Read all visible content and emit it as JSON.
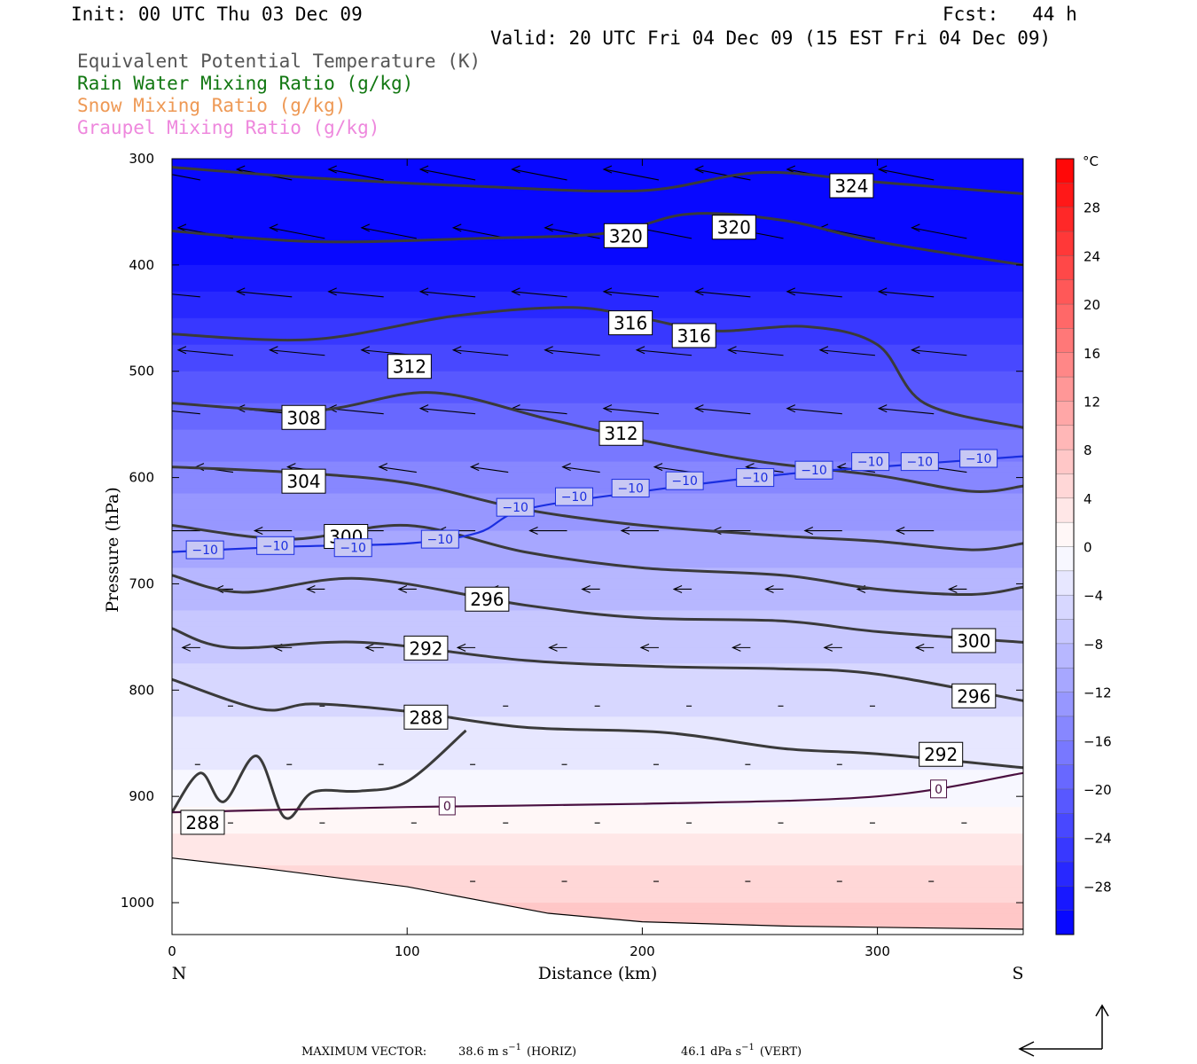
{
  "header": {
    "init": "Init: 00 UTC Thu 03 Dec 09",
    "fcst": "Fcst:   44 h",
    "valid": "Valid: 20 UTC Fri 04 Dec 09 (15 EST Fri 04 Dec 09)",
    "legend": [
      {
        "text": "Equivalent Potential Temperature (K)",
        "color": "#555555"
      },
      {
        "text": "Rain Water Mixing Ratio (g/kg)",
        "color": "#117711"
      },
      {
        "text": "Snow Mixing Ratio (g/kg)",
        "color": "#ee9955"
      },
      {
        "text": "Graupel Mixing Ratio (g/kg)",
        "color": "#ee88dd"
      }
    ]
  },
  "chart_data": {
    "type": "cross-section",
    "xlabel": "Distance (km)",
    "ylabel": "Pressure (hPa)",
    "xlim": [
      0,
      362
    ],
    "ylim": [
      1030,
      300
    ],
    "x_ticks": [
      0,
      100,
      200,
      300
    ],
    "y_ticks": [
      300,
      400,
      500,
      600,
      700,
      800,
      900,
      1000
    ],
    "x_end_labels": {
      "left": "N",
      "right": "S"
    },
    "colorbar": {
      "unit": "°C",
      "levels": [
        -32,
        -30,
        -28,
        -26,
        -24,
        -22,
        -20,
        -18,
        -16,
        -14,
        -12,
        -10,
        -8,
        -6,
        -4,
        -2,
        0,
        2,
        4,
        6,
        8,
        10,
        12,
        14,
        16,
        18,
        20,
        22,
        24,
        26,
        28,
        30,
        32
      ],
      "tick_labels": [
        "28",
        "24",
        "20",
        "16",
        "12",
        "8",
        "4",
        "0",
        "−4",
        "−8",
        "−12",
        "−16",
        "−20",
        "−24",
        "−28"
      ],
      "tick_values": [
        28,
        24,
        20,
        16,
        12,
        8,
        4,
        0,
        -4,
        -8,
        -12,
        -16,
        -20,
        -24,
        -28
      ]
    },
    "temperature_field_profile": [
      {
        "p": 300,
        "t": -32
      },
      {
        "p": 400,
        "t": -30
      },
      {
        "p": 500,
        "t": -22
      },
      {
        "p": 600,
        "t": -15
      },
      {
        "p": 700,
        "t": -9
      },
      {
        "p": 800,
        "t": -5
      },
      {
        "p": 900,
        "t": -1
      },
      {
        "p": 950,
        "t": 3
      },
      {
        "p": 1000,
        "t": 6
      },
      {
        "p": 1030,
        "t": 8
      }
    ],
    "theta_e_contours": [
      {
        "label": "324",
        "points": [
          [
            0,
            308
          ],
          [
            60,
            318
          ],
          [
            130,
            326
          ],
          [
            200,
            330
          ],
          [
            250,
            313
          ],
          [
            300,
            322
          ],
          [
            362,
            333
          ]
        ]
      },
      {
        "label": "320",
        "points": [
          [
            0,
            368
          ],
          [
            60,
            378
          ],
          [
            130,
            375
          ],
          [
            185,
            370
          ],
          [
            220,
            352
          ],
          [
            260,
            358
          ],
          [
            300,
            378
          ],
          [
            362,
            400
          ]
        ]
      },
      {
        "label": "316",
        "points": [
          [
            0,
            465
          ],
          [
            60,
            470
          ],
          [
            120,
            448
          ],
          [
            170,
            440
          ],
          [
            200,
            450
          ],
          [
            230,
            462
          ],
          [
            270,
            458
          ],
          [
            300,
            475
          ],
          [
            320,
            530
          ],
          [
            362,
            553
          ]
        ]
      },
      {
        "label": "312",
        "points": [
          [
            0,
            530
          ],
          [
            60,
            537
          ],
          [
            110,
            520
          ],
          [
            160,
            545
          ],
          [
            200,
            565
          ],
          [
            250,
            585
          ],
          [
            300,
            598
          ],
          [
            340,
            613
          ],
          [
            362,
            608
          ]
        ]
      },
      {
        "label": "308",
        "points": [
          [
            0,
            590
          ],
          [
            50,
            595
          ],
          [
            100,
            605
          ],
          [
            150,
            630
          ],
          [
            200,
            645
          ],
          [
            260,
            655
          ],
          [
            300,
            660
          ],
          [
            340,
            668
          ],
          [
            362,
            662
          ]
        ]
      },
      {
        "label": "304",
        "points": [
          [
            0,
            645
          ],
          [
            50,
            658
          ],
          [
            100,
            645
          ],
          [
            150,
            670
          ],
          [
            200,
            685
          ],
          [
            260,
            692
          ],
          [
            300,
            705
          ],
          [
            340,
            710
          ],
          [
            362,
            703
          ]
        ]
      },
      {
        "label": "300",
        "points": [
          [
            0,
            692
          ],
          [
            30,
            708
          ],
          [
            80,
            695
          ],
          [
            150,
            720
          ],
          [
            200,
            732
          ],
          [
            260,
            735
          ],
          [
            300,
            745
          ],
          [
            362,
            755
          ]
        ]
      },
      {
        "label": "296",
        "points": [
          [
            0,
            742
          ],
          [
            25,
            760
          ],
          [
            80,
            755
          ],
          [
            150,
            772
          ],
          [
            210,
            778
          ],
          [
            260,
            780
          ],
          [
            300,
            785
          ],
          [
            362,
            810
          ]
        ]
      },
      {
        "label": "292",
        "points": [
          [
            0,
            790
          ],
          [
            38,
            818
          ],
          [
            60,
            813
          ],
          [
            100,
            820
          ],
          [
            150,
            835
          ],
          [
            210,
            840
          ],
          [
            260,
            855
          ],
          [
            300,
            860
          ],
          [
            362,
            873
          ]
        ]
      },
      {
        "label": "288",
        "points": [
          [
            0,
            915
          ],
          [
            12,
            878
          ],
          [
            22,
            905
          ],
          [
            36,
            862
          ],
          [
            48,
            920
          ],
          [
            60,
            896
          ],
          [
            80,
            895
          ],
          [
            100,
            886
          ],
          [
            125,
            838
          ]
        ]
      }
    ],
    "freezing_level_hpa": [
      [
        0,
        915
      ],
      [
        100,
        910
      ],
      [
        200,
        907
      ],
      [
        300,
        900
      ],
      [
        362,
        878
      ]
    ],
    "minus10_level_hpa": [
      [
        0,
        670
      ],
      [
        50,
        665
      ],
      [
        100,
        662
      ],
      [
        130,
        652
      ],
      [
        150,
        630
      ],
      [
        200,
        613
      ],
      [
        260,
        597
      ],
      [
        300,
        590
      ],
      [
        362,
        580
      ]
    ],
    "terrain_hpa": [
      [
        0,
        958
      ],
      [
        40,
        968
      ],
      [
        100,
        985
      ],
      [
        160,
        1010
      ],
      [
        200,
        1018
      ],
      [
        260,
        1022
      ],
      [
        362,
        1025
      ]
    ],
    "theta_e_box_labels": [
      {
        "text": "324",
        "x": 289,
        "p": 325
      },
      {
        "text": "320",
        "x": 193,
        "p": 372
      },
      {
        "text": "320",
        "x": 239,
        "p": 364
      },
      {
        "text": "316",
        "x": 195,
        "p": 454
      },
      {
        "text": "316",
        "x": 222,
        "p": 466
      },
      {
        "text": "312",
        "x": 101,
        "p": 495
      },
      {
        "text": "312",
        "x": 191,
        "p": 558
      },
      {
        "text": "308",
        "x": 56,
        "p": 543
      },
      {
        "text": "304",
        "x": 56,
        "p": 603
      },
      {
        "text": "300",
        "x": 74,
        "p": 655
      },
      {
        "text": "296",
        "x": 134,
        "p": 714
      },
      {
        "text": "292",
        "x": 108,
        "p": 760
      },
      {
        "text": "288",
        "x": 108,
        "p": 825
      },
      {
        "text": "288",
        "x": 13,
        "p": 924
      },
      {
        "text": "300",
        "x": 341,
        "p": 753
      },
      {
        "text": "296",
        "x": 341,
        "p": 805
      },
      {
        "text": "292",
        "x": 327,
        "p": 860
      }
    ],
    "isotherm_box_labels": [
      {
        "text": "−10",
        "x": 14,
        "p": 668
      },
      {
        "text": "−10",
        "x": 44,
        "p": 664
      },
      {
        "text": "−10",
        "x": 77,
        "p": 666
      },
      {
        "text": "−10",
        "x": 114,
        "p": 658
      },
      {
        "text": "−10",
        "x": 146,
        "p": 628
      },
      {
        "text": "−10",
        "x": 171,
        "p": 618
      },
      {
        "text": "−10",
        "x": 195,
        "p": 610
      },
      {
        "text": "−10",
        "x": 218,
        "p": 603
      },
      {
        "text": "−10",
        "x": 248,
        "p": 600
      },
      {
        "text": "−10",
        "x": 273,
        "p": 593
      },
      {
        "text": "−10",
        "x": 297,
        "p": 585
      },
      {
        "text": "−10",
        "x": 318,
        "p": 585
      },
      {
        "text": "−10",
        "x": 343,
        "p": 582
      },
      {
        "text": "0",
        "x": 117,
        "p": 909
      },
      {
        "text": "0",
        "x": 326,
        "p": 893
      }
    ],
    "wind_vectors_note": "Arrows show circulation vectors (mostly northward-pointing, stronger aloft)"
  },
  "footer": {
    "max_vector_label": "MAXIMUM VECTOR:",
    "horiz_value": "38.6 m s",
    "horiz_exp": "−1",
    "horiz_tag": "(HORIZ)",
    "vert_value": "46.1 dPa s",
    "vert_exp": "−1",
    "vert_tag": "(VERT)"
  }
}
